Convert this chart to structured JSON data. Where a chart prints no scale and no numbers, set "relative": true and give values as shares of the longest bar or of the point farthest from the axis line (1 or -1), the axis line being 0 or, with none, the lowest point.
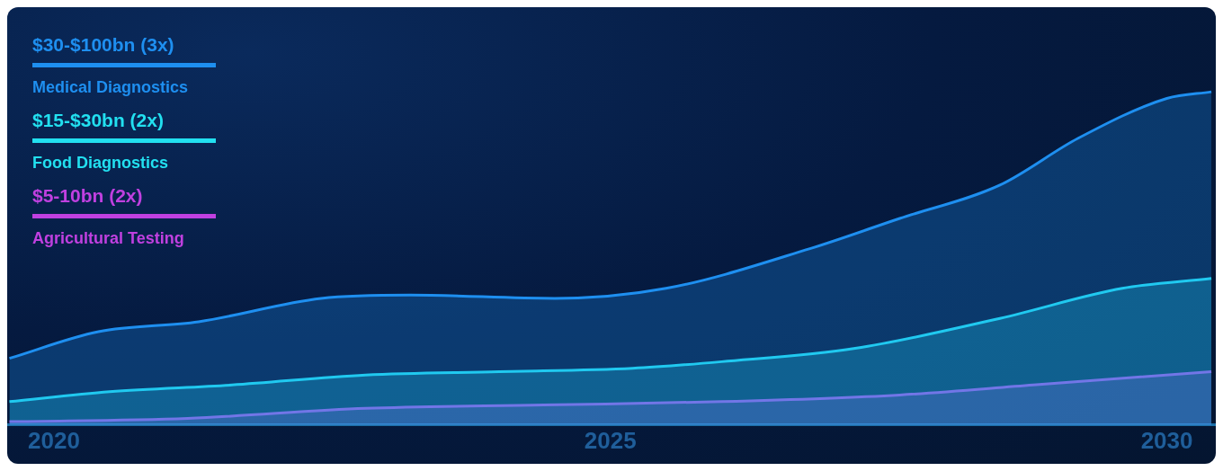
{
  "chart_data": {
    "type": "area",
    "relative": true,
    "xlim": [
      2019.58,
      2030.44
    ],
    "xticks": [
      2020,
      2025,
      2030
    ],
    "grid": false,
    "legend": "top left",
    "marker": "none",
    "annotations": [
      "$30-$100bn (3x)",
      "$15-$30bn (2x)",
      "$5-10bn (2x)"
    ],
    "series": [
      {
        "name": "Medical Diagnostics",
        "color": "#1e8ff0",
        "x": [
          2019.6,
          2020.4,
          2021.3,
          2022.4,
          2023.2,
          2024.5,
          2025.5,
          2026.8,
          2027.6,
          2028.5,
          2029.2,
          2030.0,
          2030.4
        ],
        "values": [
          0.2,
          0.28,
          0.31,
          0.38,
          0.39,
          0.38,
          0.41,
          0.53,
          0.62,
          0.72,
          0.86,
          0.98,
          1.0
        ]
      },
      {
        "name": "Food Diagnostics",
        "color": "#22e0f0",
        "x": [
          2019.6,
          2020.5,
          2021.6,
          2022.8,
          2024.0,
          2025.2,
          2026.0,
          2027.2,
          2028.5,
          2029.6,
          2030.4
        ],
        "values": [
          0.07,
          0.1,
          0.12,
          0.15,
          0.16,
          0.17,
          0.19,
          0.23,
          0.32,
          0.41,
          0.44
        ]
      },
      {
        "name": "Agricultural Testing",
        "color": "#c040e0",
        "x": [
          2019.6,
          2021.2,
          2022.8,
          2024.4,
          2026.0,
          2027.6,
          2028.8,
          2030.4
        ],
        "values": [
          0.01,
          0.02,
          0.05,
          0.06,
          0.07,
          0.09,
          0.12,
          0.16
        ]
      }
    ]
  }
}
